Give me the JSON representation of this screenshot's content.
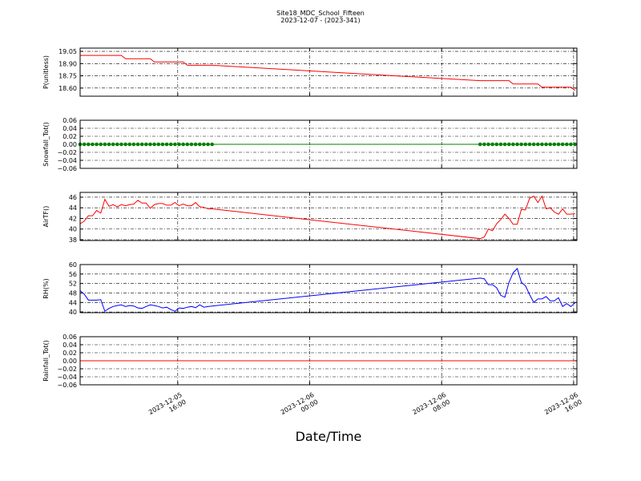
{
  "title": "Site18_MDC_School_Fifteen",
  "subtitle": "2023-12-07 - (2023-341)",
  "xlabel": "Date/Time",
  "xlim": [
    "2023-12-05 10:05",
    "2023-12-06 16:12"
  ],
  "xticks": [
    {
      "value": "2023-12-05 16:00",
      "label": [
        "2023-12-05",
        "16:00"
      ]
    },
    {
      "value": "2023-12-06 00:00",
      "label": [
        "2023-12-06",
        "00:00"
      ]
    },
    {
      "value": "2023-12-06 08:00",
      "label": [
        "2023-12-06",
        "08:00"
      ]
    },
    {
      "value": "2023-12-06 16:00",
      "label": [
        "2023-12-06",
        "16:00"
      ]
    }
  ],
  "x": [
    "2023-12-05 10:05",
    "2023-12-05 10:20",
    "2023-12-05 10:35",
    "2023-12-05 10:50",
    "2023-12-05 11:05",
    "2023-12-05 11:20",
    "2023-12-05 11:35",
    "2023-12-05 11:50",
    "2023-12-05 12:05",
    "2023-12-05 12:20",
    "2023-12-05 12:35",
    "2023-12-05 12:50",
    "2023-12-05 13:05",
    "2023-12-05 13:20",
    "2023-12-05 13:35",
    "2023-12-05 13:50",
    "2023-12-05 14:05",
    "2023-12-05 14:20",
    "2023-12-05 14:35",
    "2023-12-05 14:50",
    "2023-12-05 15:05",
    "2023-12-05 15:20",
    "2023-12-05 15:35",
    "2023-12-05 15:50",
    "2023-12-05 16:05",
    "2023-12-05 16:20",
    "2023-12-05 16:35",
    "2023-12-05 16:50",
    "2023-12-05 17:05",
    "2023-12-05 17:20",
    "2023-12-05 17:35",
    "2023-12-05 17:50",
    "2023-12-05 18:05",
    "2023-12-06 10:20",
    "2023-12-06 10:35",
    "2023-12-06 10:50",
    "2023-12-06 11:05",
    "2023-12-06 11:20",
    "2023-12-06 11:35",
    "2023-12-06 11:50",
    "2023-12-06 12:05",
    "2023-12-06 12:20",
    "2023-12-06 12:35",
    "2023-12-06 12:50",
    "2023-12-06 13:05",
    "2023-12-06 13:20",
    "2023-12-06 13:35",
    "2023-12-06 13:50",
    "2023-12-06 14:05",
    "2023-12-06 14:20",
    "2023-12-06 14:35",
    "2023-12-06 14:50",
    "2023-12-06 15:05",
    "2023-12-06 15:20",
    "2023-12-06 15:35",
    "2023-12-06 15:50",
    "2023-12-06 16:05"
  ],
  "chart_data": [
    {
      "type": "line",
      "ylabel": "P(unitless)",
      "ylim": [
        18.5,
        19.09
      ],
      "grid": true,
      "yticks": [
        {
          "value": 18.6,
          "label": "18.60"
        },
        18.75,
        {
          "value": 18.9,
          "label": "18.90"
        },
        19.05
      ],
      "series": [
        {
          "color": "#ff0000",
          "markers": false,
          "values": [
            19.0,
            19.0,
            19.0,
            19.0,
            19.0,
            19.0,
            19.0,
            19.0,
            19.0,
            19.0,
            19.0,
            18.96,
            18.96,
            18.96,
            18.96,
            18.96,
            18.96,
            18.96,
            18.92,
            18.92,
            18.92,
            18.92,
            18.92,
            18.92,
            18.92,
            18.92,
            18.88,
            18.88,
            18.88,
            18.88,
            18.88,
            18.88,
            18.88,
            18.69,
            18.69,
            18.69,
            18.69,
            18.69,
            18.69,
            18.69,
            18.69,
            18.65,
            18.65,
            18.65,
            18.65,
            18.65,
            18.65,
            18.65,
            18.61,
            18.61,
            18.61,
            18.61,
            18.61,
            18.61,
            18.61,
            18.61,
            18.57
          ]
        }
      ]
    },
    {
      "type": "line",
      "ylabel": "Snowfall_Tot()",
      "ylim": [
        -0.06,
        0.06
      ],
      "grid": true,
      "yticks": [
        {
          "value": -0.06,
          "label": "−0.06"
        },
        {
          "value": -0.04,
          "label": "−0.04"
        },
        {
          "value": -0.02,
          "label": "−0.02"
        },
        {
          "value": 0,
          "label": "0.00"
        },
        0.02,
        0.04,
        0.06
      ],
      "series": [
        {
          "color": "#008000",
          "markers": true,
          "values": [
            0,
            0,
            0,
            0,
            0,
            0,
            0,
            0,
            0,
            0,
            0,
            0,
            0,
            0,
            0,
            0,
            0,
            0,
            0,
            0,
            0,
            0,
            0,
            0,
            0,
            0,
            0,
            0,
            0,
            0,
            0,
            0,
            0,
            0,
            0,
            0,
            0,
            0,
            0,
            0,
            0,
            0,
            0,
            0,
            0,
            0,
            0,
            0,
            0,
            0,
            0,
            0,
            0,
            0,
            0,
            0,
            0
          ]
        }
      ]
    },
    {
      "type": "line",
      "ylabel": "AirTF()",
      "ylim": [
        37.85,
        46.9
      ],
      "grid": true,
      "yticks": [
        38,
        40,
        42,
        44,
        46
      ],
      "series": [
        {
          "color": "#ff0000",
          "markers": false,
          "values": [
            41,
            41.5,
            42.5,
            42.5,
            43.5,
            43,
            45.6,
            44.3,
            44.6,
            44.2,
            44.6,
            44.4,
            44.6,
            44.7,
            45.4,
            44.9,
            44.9,
            43.9,
            44.6,
            44.8,
            44.8,
            44.5,
            44.5,
            45,
            44.4,
            44.7,
            44.4,
            44.4,
            45,
            44.2,
            44.1,
            43.8,
            43.8,
            38.2,
            38.5,
            40,
            39.7,
            41,
            41.8,
            42.8,
            42,
            40.9,
            40.9,
            43.7,
            43.6,
            45.8,
            46.2,
            45,
            46.2,
            43.8,
            44,
            43.2,
            42.8,
            43.8,
            42.8,
            42.8,
            42.9
          ]
        }
      ]
    },
    {
      "type": "line",
      "ylabel": "RH(%)",
      "ylim": [
        39.7,
        60
      ],
      "grid": true,
      "yticks": [
        40,
        44,
        48,
        52,
        56,
        60
      ],
      "series": [
        {
          "color": "#0000ff",
          "markers": false,
          "values": [
            49,
            47.5,
            45,
            45,
            45,
            45.2,
            40.3,
            41.5,
            42.3,
            42.7,
            43,
            42.3,
            42.7,
            42.5,
            41.7,
            41.5,
            42.3,
            43,
            42.7,
            42.3,
            41.7,
            42,
            41,
            40.3,
            41.7,
            41.5,
            42,
            42.3,
            41.8,
            43,
            42,
            42.3,
            42.5,
            54.3,
            54,
            51.5,
            51.5,
            50.2,
            47,
            46.2,
            52.5,
            56.5,
            58.3,
            52.5,
            51,
            47.3,
            44,
            45.5,
            45.5,
            46.5,
            44.7,
            44.7,
            46,
            42.3,
            43.5,
            42.3,
            43.8
          ]
        }
      ]
    },
    {
      "type": "line",
      "ylabel": "Rainfall_Tot()",
      "ylim": [
        -0.06,
        0.06
      ],
      "grid": true,
      "yticks": [
        {
          "value": -0.06,
          "label": "−0.06"
        },
        {
          "value": -0.04,
          "label": "−0.04"
        },
        {
          "value": -0.02,
          "label": "−0.02"
        },
        {
          "value": 0,
          "label": "0.00"
        },
        0.02,
        0.04,
        0.06
      ],
      "series": [
        {
          "color": "#ff0000",
          "markers": false,
          "values": [
            0,
            0,
            0,
            0,
            0,
            0,
            0,
            0,
            0,
            0,
            0,
            0,
            0,
            0,
            0,
            0,
            0,
            0,
            0,
            0,
            0,
            0,
            0,
            0,
            0,
            0,
            0,
            0,
            0,
            0,
            0,
            0,
            0,
            0,
            0,
            0,
            0,
            0,
            0,
            0,
            0,
            0,
            0,
            0,
            0,
            0,
            0,
            0,
            0,
            0,
            0,
            0,
            0,
            0,
            0,
            0,
            0
          ]
        }
      ]
    }
  ]
}
